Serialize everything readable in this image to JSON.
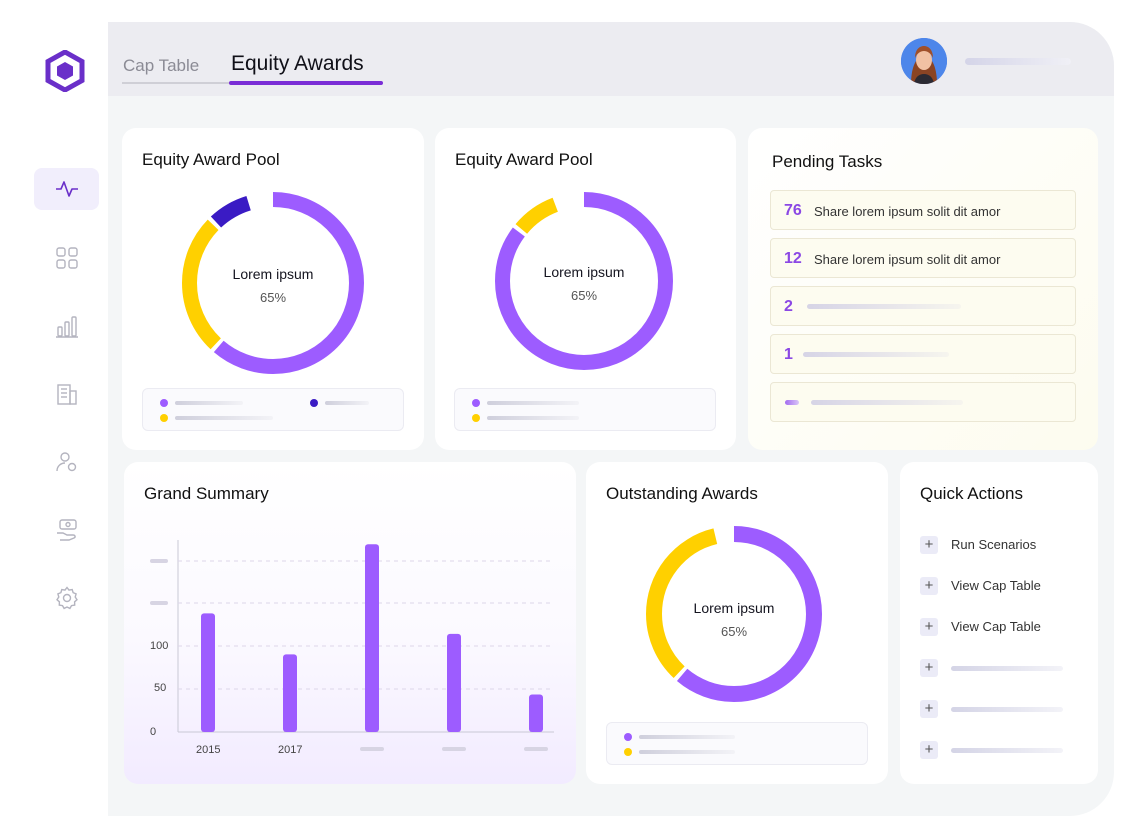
{
  "nav": {
    "items": [
      {
        "icon": "activity-icon",
        "active": true
      },
      {
        "icon": "grid-icon",
        "active": false
      },
      {
        "icon": "bar-chart-icon",
        "active": false
      },
      {
        "icon": "building-icon",
        "active": false
      },
      {
        "icon": "user-settings-icon",
        "active": false
      },
      {
        "icon": "money-hand-icon",
        "active": false
      },
      {
        "icon": "gear-icon",
        "active": false
      }
    ]
  },
  "header": {
    "tabs": [
      {
        "label": "Cap Table",
        "active": false
      },
      {
        "label": "Equity Awards",
        "active": true
      }
    ]
  },
  "colors": {
    "accent": "#9d5cff",
    "yellow": "#ffd000",
    "indigo": "#3a1bc4"
  },
  "pool1": {
    "title": "Equity Award Pool",
    "center_label": "Lorem ipsum",
    "center_value": "65%",
    "segments": [
      {
        "color": "#9d5cff",
        "fraction": 0.62
      },
      {
        "color": "#ffd000",
        "fraction": 0.26
      },
      {
        "color": "#3a1bc4",
        "fraction": 0.08
      }
    ]
  },
  "pool2": {
    "title": "Equity Award Pool",
    "center_label": "Lorem ipsum",
    "center_value": "65%",
    "segments": [
      {
        "color": "#9d5cff",
        "fraction": 0.86
      },
      {
        "color": "#ffd000",
        "fraction": 0.09
      }
    ]
  },
  "tasks": {
    "title": "Pending Tasks",
    "items": [
      {
        "count": "76",
        "text": "Share lorem ipsum solit dit amor"
      },
      {
        "count": "12",
        "text": "Share lorem ipsum solit dit amor"
      },
      {
        "count": "2",
        "text": ""
      },
      {
        "count": "1",
        "text": ""
      },
      {
        "count": "",
        "text": ""
      }
    ]
  },
  "summary": {
    "title": "Grand Summary"
  },
  "chart_data": {
    "type": "bar",
    "categories": [
      "2015",
      "2017",
      "",
      "",
      ""
    ],
    "values": [
      139,
      91,
      220,
      115,
      44
    ],
    "ylim": [
      0,
      225
    ],
    "yticks": [
      "0",
      "50",
      "100"
    ],
    "color": "#9d5cff"
  },
  "outstanding": {
    "title": "Outstanding Awards",
    "center_label": "Lorem ipsum",
    "center_value": "65%",
    "segments": [
      {
        "color": "#9d5cff",
        "fraction": 0.62
      },
      {
        "color": "#ffd000",
        "fraction": 0.35
      }
    ]
  },
  "quick_actions": {
    "title": "Quick Actions",
    "items": [
      {
        "label": "Run Scenarios"
      },
      {
        "label": "View Cap Table"
      },
      {
        "label": "View Cap Table"
      },
      {
        "label": ""
      },
      {
        "label": ""
      },
      {
        "label": ""
      }
    ]
  }
}
